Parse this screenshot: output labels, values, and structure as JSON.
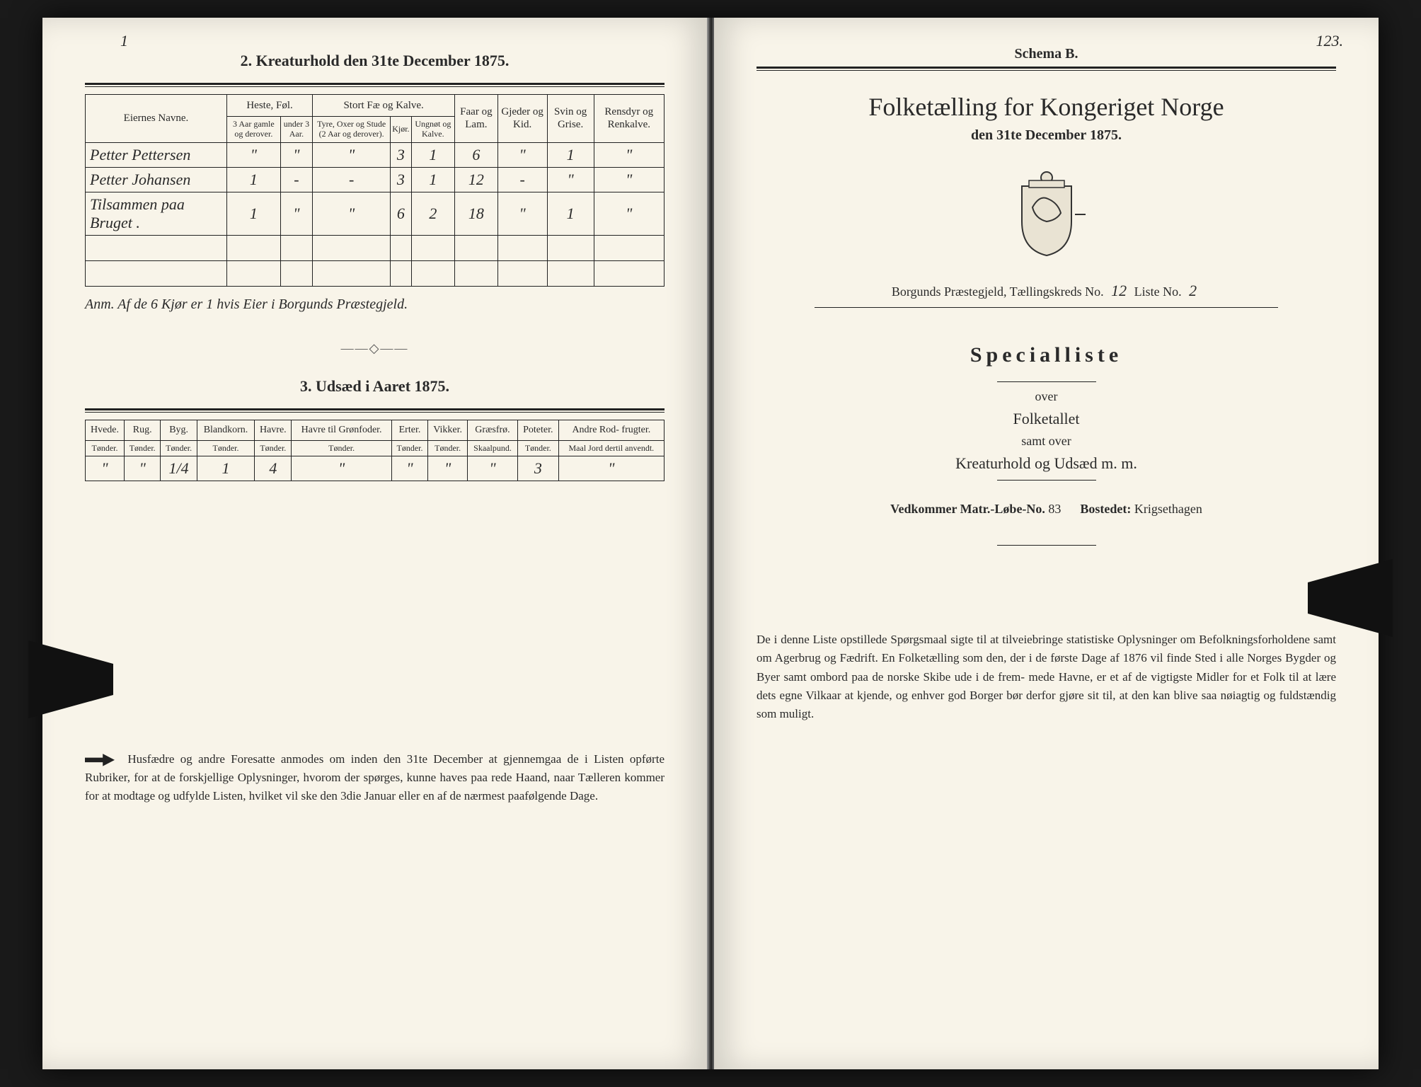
{
  "left": {
    "pageNumber": "1",
    "section2_title": "2.  Kreaturhold den 31te December 1875.",
    "kreatur": {
      "col_owner": "Eiernes Navne.",
      "groups": {
        "heste": "Heste, Føl.",
        "storfae": "Stort Fæ og Kalve.",
        "faar": "Faar og Lam.",
        "gjeder": "Gjeder og Kid.",
        "svin": "Svin og Grise.",
        "rensdyr": "Rensdyr og Renkalve."
      },
      "subs": {
        "heste_a": "3 Aar gamle og derover.",
        "heste_b": "under 3 Aar.",
        "stor_a": "Tyre, Oxer og Stude (2 Aar og derover).",
        "stor_b": "Kjør.",
        "stor_c": "Ungnøt og Kalve."
      },
      "rows": [
        {
          "owner": "Petter Pettersen",
          "heste_a": "\"",
          "heste_b": "\"",
          "stor_a": "\"",
          "stor_b": "3",
          "stor_c": "1",
          "faar": "6",
          "gjeder": "\"",
          "svin": "1",
          "rens": "\""
        },
        {
          "owner": "Petter Johansen",
          "heste_a": "1",
          "heste_b": "-",
          "stor_a": "-",
          "stor_b": "3",
          "stor_c": "1",
          "faar": "12",
          "gjeder": "-",
          "svin": "\"",
          "rens": "\""
        },
        {
          "owner": "Tilsammen paa Bruget .",
          "heste_a": "1",
          "heste_b": "\"",
          "stor_a": "\"",
          "stor_b": "6",
          "stor_c": "2",
          "faar": "18",
          "gjeder": "\"",
          "svin": "1",
          "rens": "\""
        }
      ],
      "note": "Anm. Af de 6 Kjør er 1 hvis Eier i Borgunds Præstegjeld."
    },
    "section3_title": "3.  Udsæd i Aaret 1875.",
    "udsaed": {
      "cols": [
        "Hvede.",
        "Rug.",
        "Byg.",
        "Blandkorn.",
        "Havre.",
        "Havre til Grønfoder.",
        "Erter.",
        "Vikker.",
        "Græsfrø.",
        "Poteter.",
        "Andre Rod- frugter."
      ],
      "units": [
        "Tønder.",
        "Tønder.",
        "Tønder.",
        "Tønder.",
        "Tønder.",
        "Tønder.",
        "Tønder.",
        "Tønder.",
        "Skaalpund.",
        "Tønder.",
        "Maal Jord dertil anvendt."
      ],
      "row": [
        "\"",
        "\"",
        "1/4",
        "1",
        "4",
        "\"",
        "\"",
        "\"",
        "\"",
        "3",
        "\""
      ]
    },
    "footer": "Husfædre og andre Foresatte anmodes om inden den 31te December at gjennemgaa de i Listen opførte Rubriker, for at de forskjellige Oplysninger, hvorom der spørges, kunne haves paa rede Haand, naar Tælleren kommer for at modtage og udfylde Listen, hvilket vil ske den 3die Januar eller en af de nærmest paafølgende Dage."
  },
  "right": {
    "pageNumber": "123.",
    "schema": "Schema B.",
    "title": "Folketælling for Kongeriget Norge",
    "date": "den 31te December 1875.",
    "prgjeld_label": "Borgunds Præstegjeld,  Tællingskreds No.",
    "kredsno": "12",
    "liste_label": " Liste No.",
    "listeno": "2",
    "special": "Specialliste",
    "over": "over",
    "folketallet": "Folketallet",
    "samt": "samt over",
    "kreatur": "Kreaturhold og Udsæd m. m.",
    "vedkom_label": "Vedkommer Matr.-Løbe-No.",
    "matrno": "83",
    "bosted_label": "Bostedet:",
    "bosted": "Krigsethagen",
    "body": "De i denne Liste opstillede Spørgsmaal sigte til at tilveiebringe statistiske Oplysninger om Befolkningsforholdene samt om Agerbrug og Fædrift.  En Folketælling som den, der i de første Dage af 1876 vil finde Sted i alle Norges Bygder og Byer samt ombord paa de norske Skibe ude i de frem- mede Havne, er et af de vigtigste Midler for et Folk til at lære dets egne Vilkaar at kjende, og enhver god Borger bør derfor gjøre sit til, at den kan blive saa nøiagtig og fuldstændig som muligt."
  }
}
